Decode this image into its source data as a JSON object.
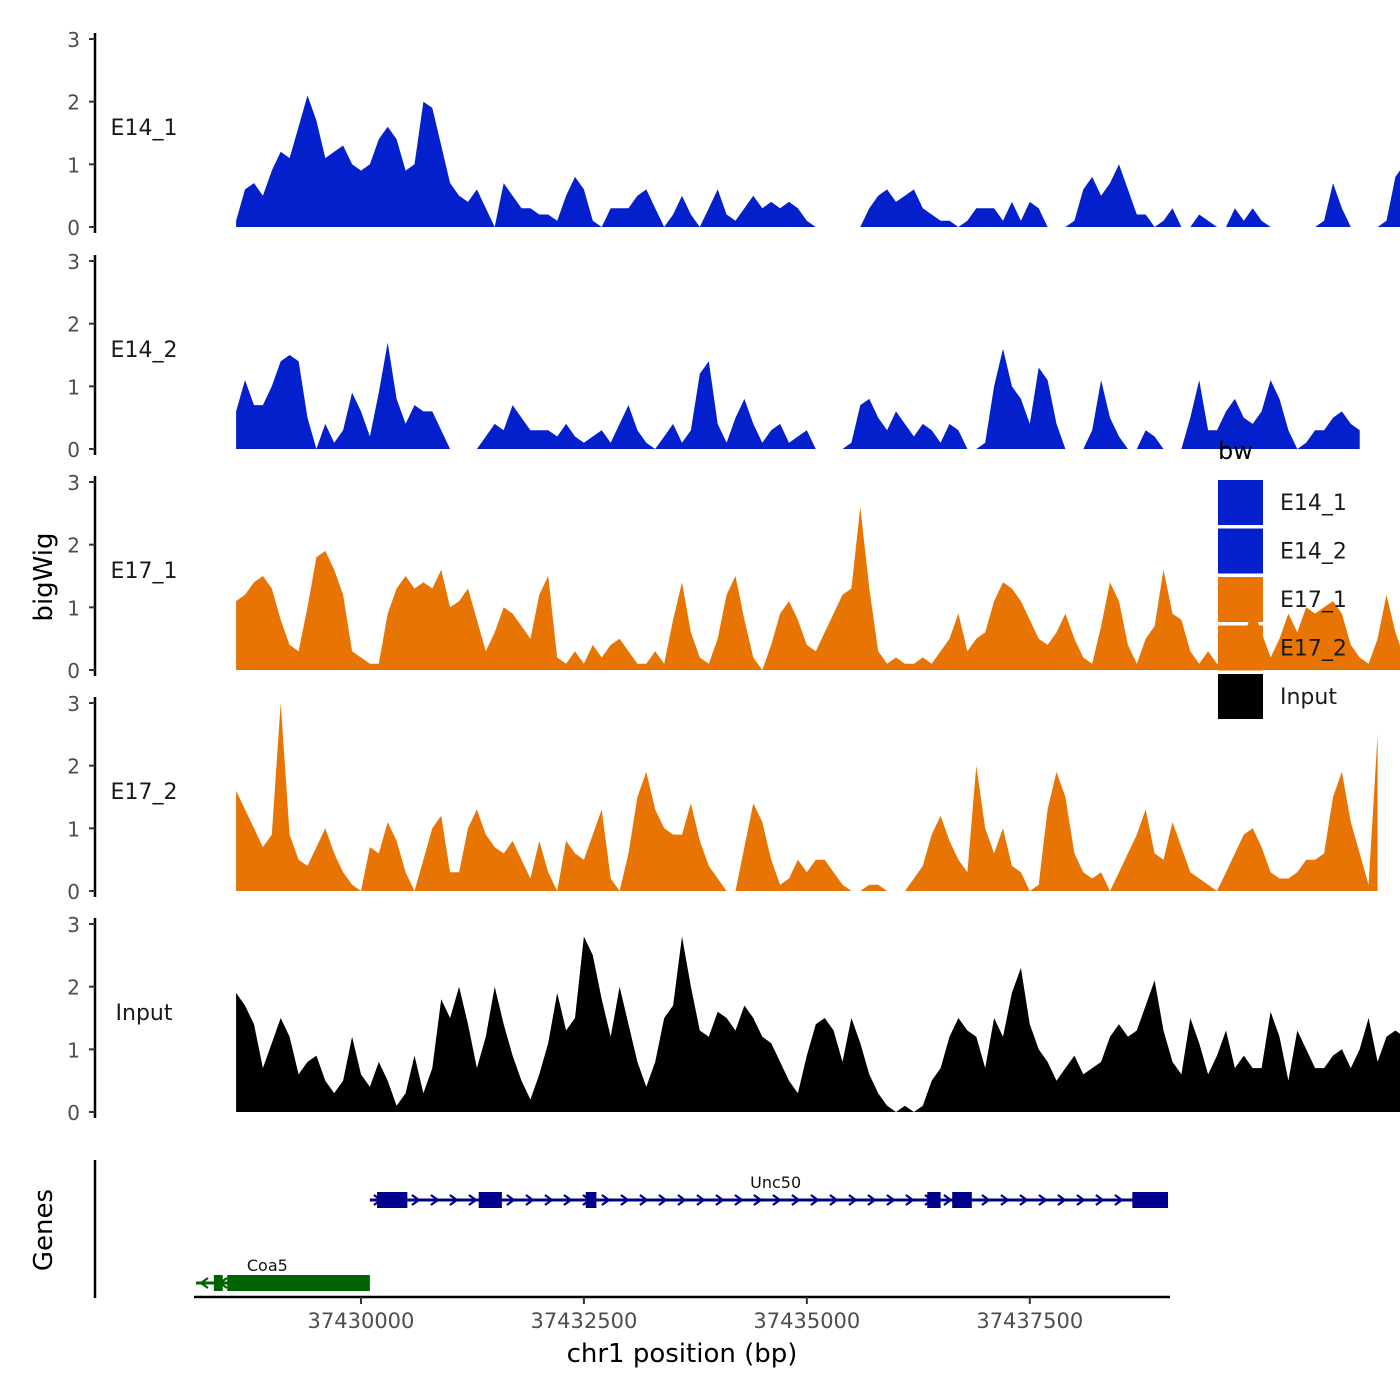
{
  "chart_data": {
    "type": "area",
    "title": "",
    "ylabel": "bigWig",
    "xlabel": "chr1 position (bp)",
    "ylim": [
      0,
      3
    ],
    "y_ticks": [
      0,
      1,
      2,
      3
    ],
    "xlim": [
      37428150,
      37439050
    ],
    "x_ticks": [
      37430000,
      37432500,
      37435000,
      37437500
    ],
    "x_tick_labels": [
      "37430000",
      "37432500",
      "37435000",
      "37437500"
    ],
    "legend": {
      "title": "bw",
      "position": "right",
      "entries": [
        {
          "label": "E14_1",
          "color": "#0320CC"
        },
        {
          "label": "E14_2",
          "color": "#0320CC"
        },
        {
          "label": "E17_1",
          "color": "#E87503"
        },
        {
          "label": "E17_2",
          "color": "#E87503"
        },
        {
          "label": "Input",
          "color": "#000000"
        }
      ]
    },
    "x_start": 37428150,
    "x_step": 100,
    "series": [
      {
        "name": "E14_1",
        "color": "#0320CC",
        "values": [
          0.1,
          0.6,
          0.7,
          0.5,
          0.9,
          1.2,
          1.1,
          1.6,
          2.1,
          1.7,
          1.1,
          1.2,
          1.3,
          1.0,
          0.9,
          1.0,
          1.4,
          1.6,
          1.4,
          0.9,
          1.0,
          2.0,
          1.9,
          1.3,
          0.7,
          0.5,
          0.4,
          0.6,
          0.3,
          0,
          0.7,
          0.5,
          0.3,
          0.3,
          0.2,
          0.2,
          0.1,
          0.5,
          0.8,
          0.6,
          0.1,
          0,
          0.3,
          0.3,
          0.3,
          0.5,
          0.6,
          0.3,
          0,
          0.2,
          0.5,
          0.2,
          0,
          0.3,
          0.6,
          0.2,
          0.1,
          0.3,
          0.5,
          0.3,
          0.4,
          0.3,
          0.4,
          0.3,
          0.1,
          0,
          0,
          0,
          0,
          0,
          0,
          0.3,
          0.5,
          0.6,
          0.4,
          0.5,
          0.6,
          0.3,
          0.2,
          0.1,
          0.1,
          0,
          0.1,
          0.3,
          0.3,
          0.3,
          0.1,
          0.4,
          0.1,
          0.4,
          0.3,
          0,
          0,
          0,
          0.1,
          0.6,
          0.8,
          0.5,
          0.7,
          1.0,
          0.6,
          0.2,
          0.2,
          0,
          0.1,
          0.3,
          0,
          0,
          0.2,
          0.1,
          0,
          0,
          0.3,
          0.1,
          0.3,
          0.1,
          0,
          0,
          0,
          0,
          0,
          0,
          0.1,
          0.7,
          0.3,
          0,
          0,
          0,
          0,
          0.1,
          0.8,
          1.0,
          0.9,
          0.8
        ]
      },
      {
        "name": "E14_2",
        "color": "#0320CC",
        "values": [
          0.6,
          1.1,
          0.7,
          0.7,
          1.0,
          1.4,
          1.5,
          1.4,
          0.5,
          0,
          0.4,
          0.1,
          0.3,
          0.9,
          0.6,
          0.2,
          0.9,
          1.7,
          0.8,
          0.4,
          0.7,
          0.6,
          0.6,
          0.3,
          0,
          0,
          0,
          0,
          0.2,
          0.4,
          0.3,
          0.7,
          0.5,
          0.3,
          0.3,
          0.3,
          0.2,
          0.4,
          0.2,
          0.1,
          0.2,
          0.3,
          0.1,
          0.4,
          0.7,
          0.3,
          0.1,
          0,
          0.2,
          0.4,
          0.1,
          0.3,
          1.2,
          1.4,
          0.4,
          0.1,
          0.5,
          0.8,
          0.4,
          0.1,
          0.3,
          0.4,
          0.1,
          0.2,
          0.3,
          0,
          0,
          0,
          0,
          0.1,
          0.7,
          0.8,
          0.5,
          0.3,
          0.6,
          0.4,
          0.2,
          0.4,
          0.3,
          0.1,
          0.4,
          0.3,
          0,
          0,
          0.1,
          1.0,
          1.6,
          1.0,
          0.8,
          0.4,
          1.3,
          1.1,
          0.4,
          0,
          0,
          0,
          0.3,
          1.1,
          0.5,
          0.2,
          0,
          0,
          0.3,
          0.2,
          0,
          0,
          0,
          0.5,
          1.1,
          0.3,
          0.3,
          0.6,
          0.8,
          0.5,
          0.4,
          0.6,
          1.1,
          0.8,
          0.3,
          0,
          0.1,
          0.3,
          0.3,
          0.5,
          0.6,
          0.4,
          0.3
        ]
      },
      {
        "name": "E17_1",
        "color": "#E87503",
        "values": [
          1.1,
          1.2,
          1.4,
          1.5,
          1.3,
          0.8,
          0.4,
          0.3,
          1.0,
          1.8,
          1.9,
          1.6,
          1.2,
          0.3,
          0.2,
          0.1,
          0.1,
          0.9,
          1.3,
          1.5,
          1.3,
          1.4,
          1.3,
          1.6,
          1.0,
          1.1,
          1.3,
          0.8,
          0.3,
          0.6,
          1.0,
          0.9,
          0.7,
          0.5,
          1.2,
          1.5,
          0.2,
          0.1,
          0.3,
          0.1,
          0.4,
          0.2,
          0.4,
          0.5,
          0.3,
          0.1,
          0.1,
          0.3,
          0.1,
          0.8,
          1.4,
          0.6,
          0.2,
          0.1,
          0.5,
          1.2,
          1.5,
          0.8,
          0.2,
          0,
          0.4,
          0.9,
          1.1,
          0.8,
          0.4,
          0.3,
          0.6,
          0.9,
          1.2,
          1.3,
          2.6,
          1.3,
          0.3,
          0.1,
          0.2,
          0.1,
          0.1,
          0.2,
          0.1,
          0.3,
          0.5,
          0.9,
          0.3,
          0.5,
          0.6,
          1.1,
          1.4,
          1.3,
          1.1,
          0.8,
          0.5,
          0.4,
          0.6,
          0.9,
          0.5,
          0.2,
          0.1,
          0.7,
          1.4,
          1.1,
          0.4,
          0.1,
          0.5,
          0.7,
          1.6,
          0.9,
          0.8,
          0.3,
          0.1,
          0.3,
          0.1,
          0.1,
          0.2,
          0.5,
          1.0,
          0.6,
          0.2,
          0.5,
          0.9,
          0.6,
          1.0,
          0.9,
          1.0,
          1.1,
          0.9,
          0.4,
          0.2,
          0.1,
          0.5,
          1.2,
          0.6,
          0.2
        ]
      },
      {
        "name": "E17_2",
        "color": "#E87503",
        "values": [
          1.6,
          1.3,
          1.0,
          0.7,
          0.9,
          3.0,
          0.9,
          0.5,
          0.4,
          0.7,
          1.0,
          0.6,
          0.3,
          0.1,
          0,
          0.7,
          0.6,
          1.1,
          0.8,
          0.3,
          0,
          0.5,
          1.0,
          1.2,
          0.3,
          0.3,
          1.0,
          1.3,
          0.9,
          0.7,
          0.6,
          0.8,
          0.5,
          0.2,
          0.8,
          0.3,
          0,
          0.8,
          0.6,
          0.5,
          0.9,
          1.3,
          0.2,
          0,
          0.6,
          1.5,
          1.9,
          1.3,
          1.0,
          0.9,
          0.9,
          1.4,
          0.8,
          0.4,
          0.2,
          0,
          0,
          0.7,
          1.4,
          1.1,
          0.5,
          0.1,
          0.2,
          0.5,
          0.3,
          0.5,
          0.5,
          0.3,
          0.1,
          0,
          0,
          0.1,
          0.1,
          0,
          0,
          0,
          0.2,
          0.4,
          0.9,
          1.2,
          0.8,
          0.5,
          0.3,
          2.0,
          1.0,
          0.6,
          1.0,
          0.4,
          0.3,
          0,
          0.1,
          1.3,
          1.9,
          1.5,
          0.6,
          0.3,
          0.2,
          0.3,
          0,
          0.3,
          0.6,
          0.9,
          1.3,
          0.6,
          0.5,
          1.1,
          0.7,
          0.3,
          0.2,
          0.1,
          0,
          0.3,
          0.6,
          0.9,
          1.0,
          0.7,
          0.3,
          0.2,
          0.2,
          0.3,
          0.5,
          0.5,
          0.6,
          1.5,
          1.9,
          1.1,
          0.6,
          0.1,
          2.5
        ]
      },
      {
        "name": "Input",
        "color": "#000000",
        "values": [
          1.9,
          1.7,
          1.4,
          0.7,
          1.1,
          1.5,
          1.2,
          0.6,
          0.8,
          0.9,
          0.5,
          0.3,
          0.5,
          1.2,
          0.6,
          0.4,
          0.8,
          0.5,
          0.1,
          0.3,
          0.9,
          0.3,
          0.7,
          1.8,
          1.5,
          2.0,
          1.4,
          0.7,
          1.2,
          2.0,
          1.4,
          0.9,
          0.5,
          0.2,
          0.6,
          1.1,
          1.9,
          1.3,
          1.5,
          2.8,
          2.5,
          1.8,
          1.2,
          2.0,
          1.4,
          0.8,
          0.4,
          0.8,
          1.5,
          1.7,
          2.8,
          2.0,
          1.3,
          1.2,
          1.6,
          1.5,
          1.3,
          1.7,
          1.5,
          1.2,
          1.1,
          0.8,
          0.5,
          0.3,
          0.9,
          1.4,
          1.5,
          1.3,
          0.8,
          1.5,
          1.1,
          0.6,
          0.3,
          0.1,
          0,
          0.1,
          0,
          0.1,
          0.5,
          0.7,
          1.2,
          1.5,
          1.3,
          1.2,
          0.7,
          1.5,
          1.2,
          1.9,
          2.3,
          1.4,
          1.0,
          0.8,
          0.5,
          0.7,
          0.9,
          0.6,
          0.7,
          0.8,
          1.2,
          1.4,
          1.2,
          1.3,
          1.7,
          2.1,
          1.3,
          0.8,
          0.6,
          1.5,
          1.1,
          0.6,
          0.9,
          1.3,
          0.7,
          0.9,
          0.7,
          0.7,
          1.6,
          1.2,
          0.5,
          1.3,
          1.0,
          0.7,
          0.7,
          0.9,
          1.0,
          0.7,
          1.0,
          1.5,
          0.8,
          1.2,
          1.3,
          1.2
        ]
      }
    ],
    "genes_track": {
      "label": "Genes",
      "genes": [
        {
          "name": "Coa5",
          "strand": "-",
          "color": "#006400",
          "start": 37428150,
          "end": 37430100,
          "row": 2,
          "label_pos": 37428950,
          "exons": [
            [
              37428350,
              37428450
            ],
            [
              37428500,
              37430100
            ]
          ]
        },
        {
          "name": "Unc50",
          "strand": "+",
          "color": "#00008B",
          "start": 37430100,
          "end": 37439050,
          "row": 1,
          "label_pos": 37434650,
          "exons": [
            [
              37430180,
              37430520
            ],
            [
              37431320,
              37431580
            ],
            [
              37432520,
              37432640
            ],
            [
              37436350,
              37436500
            ],
            [
              37436630,
              37436850
            ],
            [
              37438650,
              37439050
            ]
          ]
        }
      ]
    }
  }
}
